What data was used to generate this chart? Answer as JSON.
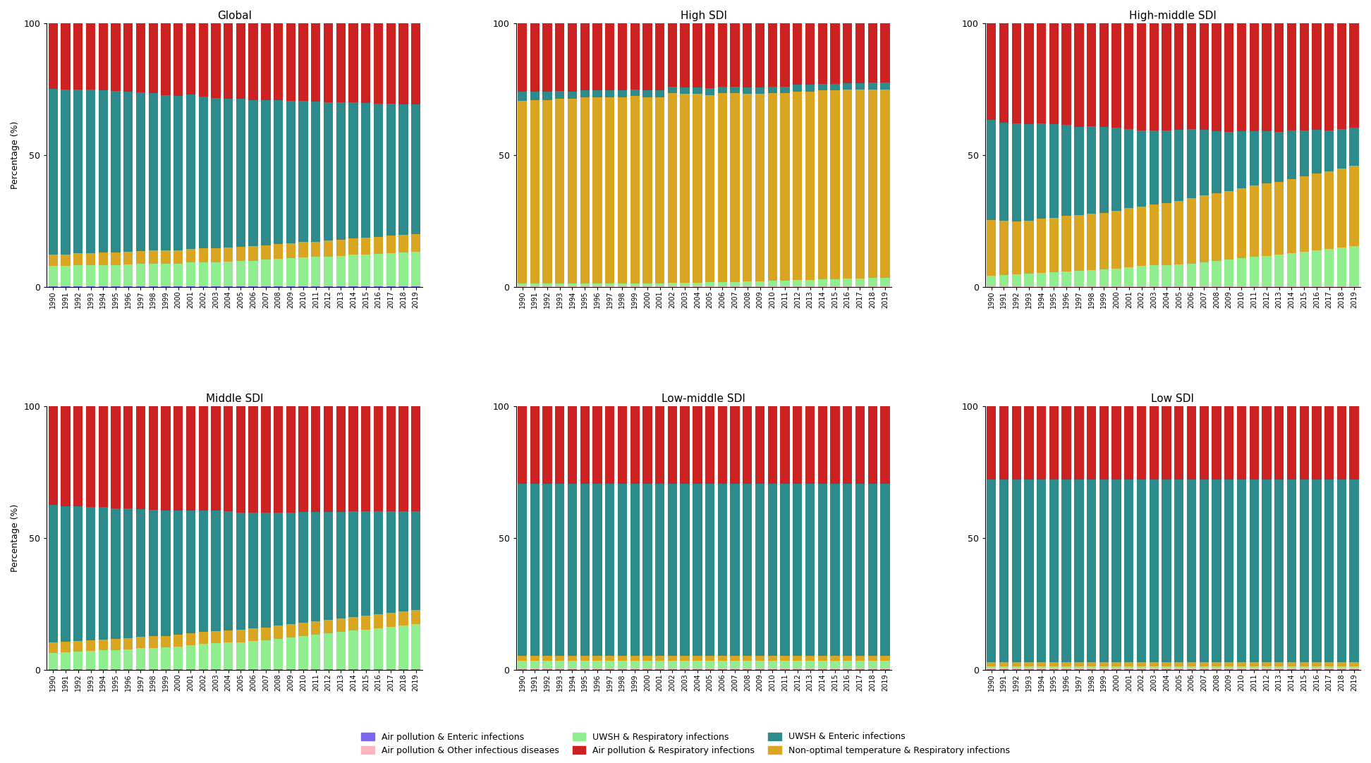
{
  "years": [
    1990,
    1991,
    1992,
    1993,
    1994,
    1995,
    1996,
    1997,
    1998,
    1999,
    2000,
    2001,
    2002,
    2003,
    2004,
    2005,
    2006,
    2007,
    2008,
    2009,
    2010,
    2011,
    2012,
    2013,
    2014,
    2015,
    2016,
    2017,
    2018,
    2019
  ],
  "panels": {
    "Global": {
      "AP_Enteric": [
        0.2,
        0.2,
        0.2,
        0.2,
        0.2,
        0.2,
        0.2,
        0.2,
        0.2,
        0.2,
        0.2,
        0.2,
        0.2,
        0.2,
        0.2,
        0.2,
        0.2,
        0.2,
        0.2,
        0.2,
        0.2,
        0.2,
        0.2,
        0.2,
        0.2,
        0.2,
        0.2,
        0.2,
        0.2,
        0.2
      ],
      "AP_Other": [
        0.2,
        0.2,
        0.2,
        0.2,
        0.2,
        0.2,
        0.2,
        0.2,
        0.2,
        0.2,
        0.2,
        0.2,
        0.2,
        0.2,
        0.2,
        0.2,
        0.2,
        0.2,
        0.2,
        0.2,
        0.2,
        0.2,
        0.2,
        0.2,
        0.2,
        0.2,
        0.2,
        0.2,
        0.2,
        0.2
      ],
      "UWSH_Resp": [
        7.5,
        7.5,
        7.8,
        7.8,
        8.0,
        8.0,
        8.2,
        8.3,
        8.5,
        8.5,
        8.5,
        8.8,
        9.0,
        9.0,
        9.2,
        9.5,
        9.5,
        10.0,
        10.2,
        10.5,
        10.8,
        11.0,
        11.2,
        11.5,
        11.8,
        12.0,
        12.2,
        12.5,
        12.8,
        13.0
      ],
      "NonOptTemp_Resp": [
        4.5,
        4.5,
        4.6,
        4.7,
        4.7,
        4.8,
        4.8,
        4.9,
        5.0,
        5.0,
        5.0,
        5.1,
        5.2,
        5.2,
        5.3,
        5.4,
        5.5,
        5.5,
        5.6,
        5.7,
        5.8,
        5.8,
        6.0,
        6.1,
        6.2,
        6.3,
        6.4,
        6.5,
        6.6,
        6.7
      ],
      "UWSH_Enteric": [
        62.6,
        62.4,
        62.1,
        61.8,
        61.5,
        61.0,
        60.5,
        60.0,
        59.5,
        59.0,
        58.5,
        58.0,
        57.5,
        57.0,
        56.5,
        56.0,
        55.5,
        55.0,
        54.5,
        54.0,
        53.5,
        53.0,
        52.5,
        52.0,
        51.5,
        51.0,
        50.5,
        50.0,
        49.5,
        49.0
      ],
      "AP_Resp": [
        25.0,
        25.2,
        25.1,
        25.3,
        25.4,
        25.8,
        26.1,
        26.4,
        26.6,
        27.3,
        27.6,
        26.7,
        27.9,
        28.4,
        28.6,
        28.7,
        29.1,
        29.1,
        29.3,
        29.4,
        29.5,
        29.8,
        29.9,
        30.0,
        30.1,
        30.3,
        30.5,
        30.6,
        30.7,
        30.8
      ]
    },
    "High SDI": {
      "AP_Enteric": [
        0.1,
        0.1,
        0.1,
        0.1,
        0.1,
        0.1,
        0.1,
        0.1,
        0.1,
        0.1,
        0.1,
        0.1,
        0.1,
        0.1,
        0.1,
        0.1,
        0.1,
        0.1,
        0.1,
        0.1,
        0.1,
        0.1,
        0.1,
        0.1,
        0.1,
        0.1,
        0.1,
        0.1,
        0.1,
        0.1
      ],
      "AP_Other": [
        0.3,
        0.3,
        0.3,
        0.3,
        0.3,
        0.3,
        0.3,
        0.3,
        0.3,
        0.3,
        0.3,
        0.3,
        0.3,
        0.3,
        0.3,
        0.3,
        0.3,
        0.3,
        0.3,
        0.3,
        0.3,
        0.3,
        0.3,
        0.3,
        0.3,
        0.3,
        0.3,
        0.3,
        0.3,
        0.3
      ],
      "UWSH_Resp": [
        1.0,
        1.0,
        1.0,
        1.0,
        1.0,
        1.0,
        1.0,
        1.0,
        1.0,
        1.0,
        1.0,
        1.0,
        1.2,
        1.2,
        1.2,
        1.5,
        1.5,
        1.5,
        1.8,
        1.8,
        2.0,
        2.0,
        2.2,
        2.2,
        2.5,
        2.5,
        2.8,
        2.8,
        3.0,
        3.0
      ],
      "NonOptTemp_Resp": [
        69.0,
        69.5,
        69.5,
        70.0,
        70.0,
        70.5,
        70.5,
        70.5,
        70.5,
        71.0,
        70.5,
        70.5,
        71.0,
        70.8,
        70.8,
        70.5,
        70.0,
        70.0,
        69.5,
        69.5,
        69.5,
        69.5,
        70.0,
        70.0,
        70.0,
        70.0,
        70.0,
        70.0,
        70.0,
        70.0
      ],
      "UWSH_Enteric": [
        3.5,
        3.2,
        3.0,
        2.8,
        2.6,
        2.5,
        2.5,
        2.5,
        2.5,
        2.5,
        2.5,
        2.5,
        2.5,
        2.5,
        2.5,
        2.5,
        2.5,
        2.5,
        2.5,
        2.5,
        2.5,
        2.5,
        2.5,
        2.5,
        2.5,
        2.5,
        2.5,
        2.5,
        2.5,
        2.5
      ],
      "AP_Resp": [
        26.1,
        25.9,
        26.1,
        25.8,
        26.0,
        25.6,
        25.6,
        25.6,
        25.6,
        25.1,
        25.6,
        25.6,
        23.9,
        24.2,
        24.2,
        24.7,
        23.6,
        23.6,
        23.8,
        23.8,
        23.6,
        23.6,
        22.9,
        22.9,
        22.6,
        22.6,
        22.3,
        22.3,
        22.1,
        22.1
      ]
    },
    "High-middle SDI": {
      "AP_Enteric": [
        0.1,
        0.1,
        0.1,
        0.1,
        0.1,
        0.1,
        0.1,
        0.1,
        0.1,
        0.1,
        0.1,
        0.1,
        0.1,
        0.1,
        0.1,
        0.1,
        0.1,
        0.1,
        0.1,
        0.1,
        0.1,
        0.1,
        0.1,
        0.1,
        0.1,
        0.1,
        0.1,
        0.1,
        0.1,
        0.1
      ],
      "AP_Other": [
        0.3,
        0.3,
        0.3,
        0.3,
        0.3,
        0.3,
        0.3,
        0.3,
        0.3,
        0.3,
        0.3,
        0.3,
        0.3,
        0.3,
        0.3,
        0.3,
        0.3,
        0.3,
        0.3,
        0.3,
        0.3,
        0.3,
        0.3,
        0.3,
        0.3,
        0.3,
        0.3,
        0.3,
        0.3,
        0.3
      ],
      "UWSH_Resp": [
        4.0,
        4.2,
        4.5,
        4.8,
        5.0,
        5.2,
        5.5,
        5.8,
        6.0,
        6.2,
        6.5,
        7.0,
        7.5,
        7.8,
        8.0,
        8.2,
        8.5,
        9.0,
        9.5,
        10.0,
        10.5,
        11.0,
        11.5,
        12.0,
        12.5,
        13.0,
        13.5,
        14.0,
        14.5,
        15.0
      ],
      "NonOptTemp_Resp": [
        21.0,
        20.5,
        20.0,
        20.0,
        20.5,
        20.5,
        21.0,
        21.0,
        21.5,
        21.5,
        22.0,
        22.5,
        22.5,
        23.0,
        23.5,
        24.0,
        24.5,
        25.0,
        25.5,
        26.0,
        26.5,
        27.0,
        27.5,
        27.5,
        28.0,
        28.5,
        29.0,
        29.5,
        30.0,
        30.5
      ],
      "UWSH_Enteric": [
        38.0,
        37.0,
        37.0,
        36.5,
        36.0,
        35.5,
        34.5,
        33.5,
        33.0,
        32.5,
        31.5,
        30.0,
        29.0,
        28.0,
        27.5,
        27.0,
        26.0,
        24.5,
        23.5,
        22.5,
        21.5,
        20.5,
        19.5,
        19.0,
        18.5,
        17.5,
        16.5,
        15.5,
        15.0,
        14.5
      ],
      "AP_Resp": [
        36.6,
        37.9,
        38.1,
        38.3,
        38.1,
        38.4,
        38.6,
        39.3,
        39.1,
        39.4,
        39.6,
        40.1,
        40.6,
        40.8,
        40.6,
        40.4,
        40.1,
        40.2,
        41.1,
        41.2,
        41.1,
        41.1,
        41.1,
        41.2,
        40.6,
        40.6,
        40.4,
        40.6,
        40.1,
        39.6
      ]
    },
    "Middle SDI": {
      "AP_Enteric": [
        0.2,
        0.2,
        0.2,
        0.2,
        0.2,
        0.2,
        0.2,
        0.2,
        0.2,
        0.2,
        0.2,
        0.2,
        0.2,
        0.2,
        0.2,
        0.2,
        0.2,
        0.2,
        0.2,
        0.2,
        0.2,
        0.2,
        0.2,
        0.2,
        0.2,
        0.2,
        0.2,
        0.2,
        0.2,
        0.2
      ],
      "AP_Other": [
        0.2,
        0.2,
        0.2,
        0.2,
        0.2,
        0.2,
        0.2,
        0.2,
        0.2,
        0.2,
        0.2,
        0.2,
        0.2,
        0.2,
        0.2,
        0.2,
        0.2,
        0.2,
        0.2,
        0.2,
        0.2,
        0.2,
        0.2,
        0.2,
        0.2,
        0.2,
        0.2,
        0.2,
        0.2,
        0.2
      ],
      "UWSH_Resp": [
        6.0,
        6.2,
        6.5,
        6.8,
        7.0,
        7.2,
        7.5,
        7.8,
        8.0,
        8.2,
        8.5,
        9.0,
        9.5,
        9.8,
        10.0,
        10.2,
        10.5,
        11.0,
        11.5,
        12.0,
        12.5,
        13.0,
        13.5,
        14.0,
        14.5,
        15.0,
        15.5,
        16.0,
        16.5,
        17.0
      ],
      "NonOptTemp_Resp": [
        4.0,
        4.0,
        4.1,
        4.1,
        4.2,
        4.2,
        4.3,
        4.3,
        4.4,
        4.4,
        4.5,
        4.5,
        4.6,
        4.6,
        4.7,
        4.7,
        4.8,
        4.8,
        4.9,
        4.9,
        5.0,
        5.0,
        5.1,
        5.1,
        5.2,
        5.2,
        5.3,
        5.3,
        5.4,
        5.4
      ],
      "UWSH_Enteric": [
        52.0,
        51.5,
        51.0,
        50.5,
        50.0,
        49.5,
        49.0,
        48.5,
        48.0,
        47.5,
        47.0,
        46.5,
        46.0,
        45.5,
        45.0,
        44.5,
        44.0,
        43.5,
        43.0,
        42.5,
        42.0,
        41.5,
        41.0,
        40.5,
        40.0,
        39.5,
        39.0,
        38.5,
        38.0,
        37.5
      ],
      "AP_Resp": [
        37.6,
        37.9,
        38.0,
        38.2,
        38.4,
        38.7,
        39.0,
        39.2,
        39.4,
        39.7,
        39.6,
        39.8,
        39.5,
        39.7,
        40.1,
        40.4,
        40.5,
        40.5,
        40.4,
        40.4,
        40.3,
        40.3,
        40.2,
        40.2,
        40.1,
        40.1,
        40.0,
        40.0,
        39.9,
        39.9
      ]
    },
    "Low-middle SDI": {
      "AP_Enteric": [
        0.2,
        0.2,
        0.2,
        0.2,
        0.2,
        0.2,
        0.2,
        0.2,
        0.2,
        0.2,
        0.2,
        0.2,
        0.2,
        0.2,
        0.2,
        0.2,
        0.2,
        0.2,
        0.2,
        0.2,
        0.2,
        0.2,
        0.2,
        0.2,
        0.2,
        0.2,
        0.2,
        0.2,
        0.2,
        0.2
      ],
      "AP_Other": [
        0.3,
        0.3,
        0.3,
        0.3,
        0.3,
        0.3,
        0.3,
        0.3,
        0.3,
        0.3,
        0.3,
        0.3,
        0.3,
        0.3,
        0.3,
        0.3,
        0.3,
        0.3,
        0.3,
        0.3,
        0.3,
        0.3,
        0.3,
        0.3,
        0.3,
        0.3,
        0.3,
        0.3,
        0.3,
        0.3
      ],
      "UWSH_Resp": [
        3.0,
        3.0,
        3.0,
        3.0,
        3.0,
        3.0,
        3.0,
        3.0,
        3.0,
        3.0,
        3.0,
        3.0,
        3.0,
        3.0,
        3.0,
        3.0,
        3.0,
        3.0,
        3.0,
        3.0,
        3.0,
        3.0,
        3.0,
        3.0,
        3.0,
        3.0,
        3.0,
        3.0,
        3.0,
        3.0
      ],
      "NonOptTemp_Resp": [
        2.0,
        2.0,
        2.0,
        2.0,
        2.0,
        2.0,
        2.0,
        2.0,
        2.0,
        2.0,
        2.0,
        2.0,
        2.0,
        2.0,
        2.0,
        2.0,
        2.0,
        2.0,
        2.0,
        2.0,
        2.0,
        2.0,
        2.0,
        2.0,
        2.0,
        2.0,
        2.0,
        2.0,
        2.0,
        2.0
      ],
      "UWSH_Enteric": [
        65.0,
        65.0,
        65.0,
        65.0,
        65.0,
        65.0,
        65.0,
        65.0,
        65.0,
        65.0,
        65.0,
        65.0,
        65.0,
        65.0,
        65.0,
        65.0,
        65.0,
        65.0,
        65.0,
        65.0,
        65.0,
        65.0,
        65.0,
        65.0,
        65.0,
        65.0,
        65.0,
        65.0,
        65.0,
        65.0
      ],
      "AP_Resp": [
        29.5,
        29.5,
        29.5,
        29.5,
        29.5,
        29.5,
        29.5,
        29.5,
        29.5,
        29.5,
        29.5,
        29.5,
        29.5,
        29.5,
        29.5,
        29.5,
        29.5,
        29.5,
        29.5,
        29.5,
        29.5,
        29.5,
        29.5,
        29.5,
        29.5,
        29.5,
        29.5,
        29.5,
        29.5,
        29.5
      ]
    },
    "Low SDI": {
      "AP_Enteric": [
        0.2,
        0.2,
        0.2,
        0.2,
        0.2,
        0.2,
        0.2,
        0.2,
        0.2,
        0.2,
        0.2,
        0.2,
        0.2,
        0.2,
        0.2,
        0.2,
        0.2,
        0.2,
        0.2,
        0.2,
        0.2,
        0.2,
        0.2,
        0.2,
        0.2,
        0.2,
        0.2,
        0.2,
        0.2,
        0.2
      ],
      "AP_Other": [
        0.3,
        0.3,
        0.3,
        0.3,
        0.3,
        0.3,
        0.3,
        0.3,
        0.3,
        0.3,
        0.3,
        0.3,
        0.3,
        0.3,
        0.3,
        0.3,
        0.3,
        0.3,
        0.3,
        0.3,
        0.3,
        0.3,
        0.3,
        0.3,
        0.3,
        0.3,
        0.3,
        0.3,
        0.3,
        0.3
      ],
      "UWSH_Resp": [
        1.0,
        1.0,
        1.0,
        1.0,
        1.0,
        1.0,
        1.0,
        1.0,
        1.0,
        1.0,
        1.0,
        1.0,
        1.0,
        1.0,
        1.0,
        1.0,
        1.0,
        1.0,
        1.0,
        1.0,
        1.0,
        1.0,
        1.0,
        1.0,
        1.0,
        1.0,
        1.0,
        1.0,
        1.0,
        1.0
      ],
      "NonOptTemp_Resp": [
        1.5,
        1.5,
        1.5,
        1.5,
        1.5,
        1.5,
        1.5,
        1.5,
        1.5,
        1.5,
        1.5,
        1.5,
        1.5,
        1.5,
        1.5,
        1.5,
        1.5,
        1.5,
        1.5,
        1.5,
        1.5,
        1.5,
        1.5,
        1.5,
        1.5,
        1.5,
        1.5,
        1.5,
        1.5,
        1.5
      ],
      "UWSH_Enteric": [
        69.0,
        69.0,
        69.0,
        69.0,
        69.0,
        69.0,
        69.0,
        69.0,
        69.0,
        69.0,
        69.0,
        69.0,
        69.0,
        69.0,
        69.0,
        69.0,
        69.0,
        69.0,
        69.0,
        69.0,
        69.0,
        69.0,
        69.0,
        69.0,
        69.0,
        69.0,
        69.0,
        69.0,
        69.0,
        69.0
      ],
      "AP_Resp": [
        28.0,
        28.0,
        28.0,
        28.0,
        28.0,
        28.0,
        28.0,
        28.0,
        28.0,
        28.0,
        28.0,
        28.0,
        28.0,
        28.0,
        28.0,
        28.0,
        28.0,
        28.0,
        28.0,
        28.0,
        28.0,
        28.0,
        28.0,
        28.0,
        28.0,
        28.0,
        28.0,
        28.0,
        28.0,
        28.0
      ]
    }
  },
  "colors": {
    "AP_Enteric": "#7B68EE",
    "AP_Other": "#FFB6C1",
    "UWSH_Resp": "#90EE90",
    "NonOptTemp_Resp": "#DAA520",
    "UWSH_Enteric": "#2E8B8B",
    "AP_Resp": "#CC2222"
  },
  "legend_labels": {
    "AP_Enteric": "Air pollution & Enteric infections",
    "AP_Other": "Air pollution & Other infectious diseases",
    "UWSH_Resp": "UWSH & Respiratory infections",
    "NonOptTemp_Resp": "Non-optimal temperature & Respiratory infections",
    "UWSH_Enteric": "UWSH & Enteric infections",
    "AP_Resp": "Air pollution & Respiratory infections"
  },
  "panel_titles": [
    "Global",
    "High SDI",
    "High-middle SDI",
    "Middle SDI",
    "Low-middle SDI",
    "Low SDI"
  ],
  "panel_order": [
    "Global",
    "High SDI",
    "High-middle SDI",
    "Middle SDI",
    "Low-middle SDI",
    "Low SDI"
  ],
  "ylabel": "Percentage (%)",
  "bar_width": 0.75
}
